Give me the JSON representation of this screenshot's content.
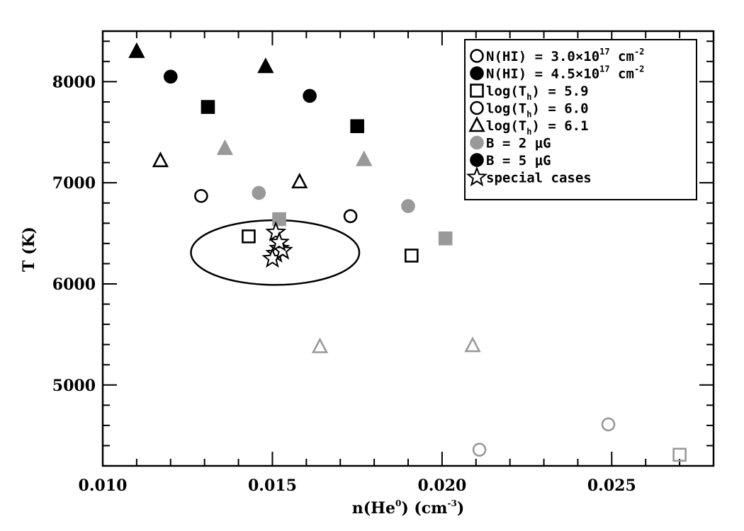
{
  "chart_data": {
    "type": "scatter",
    "title": "",
    "xlabel": {
      "main": "n(He",
      "sup": "0",
      "rest": ") (cm",
      "sup2": "-3",
      "end": ")"
    },
    "ylabel": "T (K)",
    "xlim": [
      0.01,
      0.028
    ],
    "ylim": [
      4200,
      8500
    ],
    "xticks": [
      0.01,
      0.015,
      0.02,
      0.025
    ],
    "xtick_labels": [
      "0.010",
      "0.015",
      "0.020",
      "0.025"
    ],
    "yticks": [
      5000,
      6000,
      7000,
      8000
    ],
    "ytick_labels": [
      "5000",
      "6000",
      "7000",
      "8000"
    ],
    "grid": false,
    "legend_position": "top-right",
    "colors": {
      "black": "#000000",
      "gray": "#999999"
    },
    "legend": [
      {
        "marker": "circle",
        "fill": "none",
        "color": "#000000",
        "label": "N(HI) = 3.0×10",
        "sup": "17",
        "rest": " cm",
        "sup2": "-2"
      },
      {
        "marker": "circle",
        "fill": "solid",
        "color": "#000000",
        "label": "N(HI) = 4.5×10",
        "sup": "17",
        "rest": " cm",
        "sup2": "-2"
      },
      {
        "marker": "square",
        "fill": "none",
        "color": "#000000",
        "label": "log(T",
        "sub": "h",
        "rest": ") = 5.9"
      },
      {
        "marker": "circle",
        "fill": "none",
        "color": "#000000",
        "label": "log(T",
        "sub": "h",
        "rest": ") = 6.0"
      },
      {
        "marker": "triangle",
        "fill": "none",
        "color": "#000000",
        "label": "log(T",
        "sub": "h",
        "rest": ") = 6.1"
      },
      {
        "marker": "circle",
        "fill": "solid",
        "color": "#999999",
        "label": "B = 2 μG"
      },
      {
        "marker": "circle",
        "fill": "solid",
        "color": "#000000",
        "label": "B = 5 μG"
      },
      {
        "marker": "star",
        "fill": "none",
        "color": "#000000",
        "label": "special cases"
      }
    ],
    "points": [
      {
        "x": 0.011,
        "y": 8300,
        "marker": "triangle",
        "fill": "solid",
        "color": "#000000"
      },
      {
        "x": 0.0148,
        "y": 8150,
        "marker": "triangle",
        "fill": "solid",
        "color": "#000000"
      },
      {
        "x": 0.012,
        "y": 8050,
        "marker": "circle",
        "fill": "solid",
        "color": "#000000"
      },
      {
        "x": 0.0161,
        "y": 7860,
        "marker": "circle",
        "fill": "solid",
        "color": "#000000"
      },
      {
        "x": 0.0131,
        "y": 7750,
        "marker": "square",
        "fill": "solid",
        "color": "#000000"
      },
      {
        "x": 0.0175,
        "y": 7560,
        "marker": "square",
        "fill": "solid",
        "color": "#000000"
      },
      {
        "x": 0.0136,
        "y": 7340,
        "marker": "triangle",
        "fill": "solid",
        "color": "#999999"
      },
      {
        "x": 0.0177,
        "y": 7230,
        "marker": "triangle",
        "fill": "solid",
        "color": "#999999"
      },
      {
        "x": 0.0117,
        "y": 7220,
        "marker": "triangle",
        "fill": "none",
        "color": "#000000"
      },
      {
        "x": 0.0158,
        "y": 7010,
        "marker": "triangle",
        "fill": "none",
        "color": "#000000"
      },
      {
        "x": 0.0146,
        "y": 6900,
        "marker": "circle",
        "fill": "solid",
        "color": "#999999"
      },
      {
        "x": 0.0129,
        "y": 6870,
        "marker": "circle",
        "fill": "none",
        "color": "#000000"
      },
      {
        "x": 0.019,
        "y": 6770,
        "marker": "circle",
        "fill": "solid",
        "color": "#999999"
      },
      {
        "x": 0.0173,
        "y": 6670,
        "marker": "circle",
        "fill": "none",
        "color": "#000000"
      },
      {
        "x": 0.0152,
        "y": 6640,
        "marker": "square",
        "fill": "solid",
        "color": "#999999"
      },
      {
        "x": 0.0143,
        "y": 6470,
        "marker": "square",
        "fill": "none",
        "color": "#000000"
      },
      {
        "x": 0.0201,
        "y": 6450,
        "marker": "square",
        "fill": "solid",
        "color": "#999999"
      },
      {
        "x": 0.0191,
        "y": 6280,
        "marker": "square",
        "fill": "none",
        "color": "#000000"
      },
      {
        "x": 0.0151,
        "y": 6510,
        "marker": "star",
        "fill": "none",
        "color": "#000000"
      },
      {
        "x": 0.0152,
        "y": 6350,
        "marker": "star",
        "fill": "none",
        "color": "#000000"
      },
      {
        "x": 0.0151,
        "y": 6300,
        "marker": "star",
        "fill": "none",
        "color": "#000000"
      },
      {
        "x": 0.015,
        "y": 6250,
        "marker": "star",
        "fill": "none",
        "color": "#000000"
      },
      {
        "x": 0.0153,
        "y": 6330,
        "marker": "star",
        "fill": "none",
        "color": "#000000"
      },
      {
        "x": 0.0152,
        "y": 6410,
        "marker": "star",
        "fill": "none",
        "color": "#000000"
      },
      {
        "x": 0.0164,
        "y": 5380,
        "marker": "triangle",
        "fill": "none",
        "color": "#999999"
      },
      {
        "x": 0.0209,
        "y": 5390,
        "marker": "triangle",
        "fill": "none",
        "color": "#999999"
      },
      {
        "x": 0.0249,
        "y": 4610,
        "marker": "circle",
        "fill": "none",
        "color": "#999999"
      },
      {
        "x": 0.0211,
        "y": 4360,
        "marker": "circle",
        "fill": "none",
        "color": "#999999"
      },
      {
        "x": 0.027,
        "y": 4310,
        "marker": "square",
        "fill": "none",
        "color": "#999999"
      }
    ],
    "ellipse": {
      "cx": 0.01508,
      "cy": 6310,
      "rx": 0.00248,
      "ry": 320
    }
  }
}
